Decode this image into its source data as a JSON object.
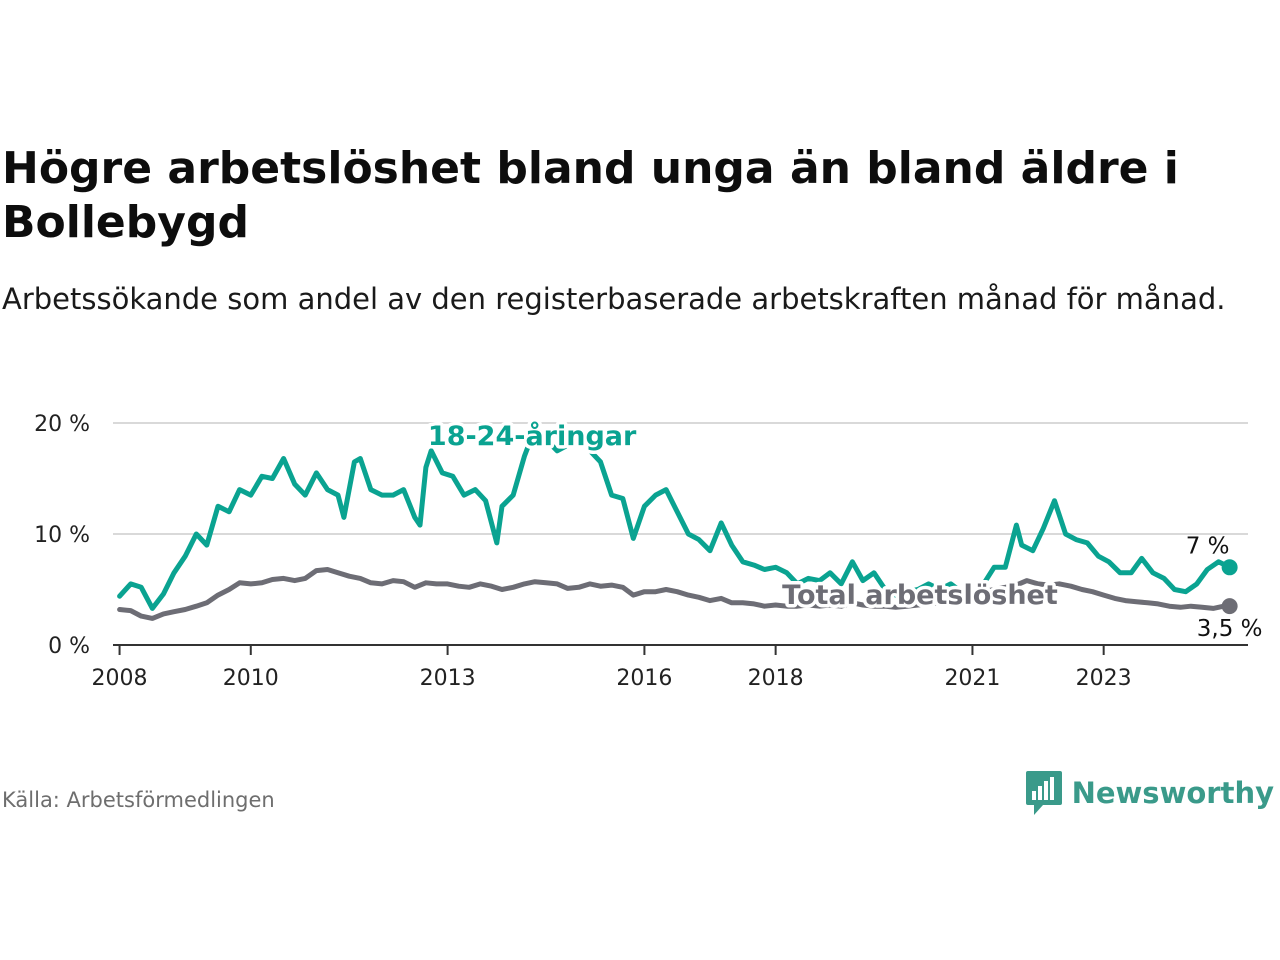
{
  "header": {
    "title": "Högre arbetslöshet bland unga än bland äldre i Bollebygd",
    "subtitle": "Arbetssökande som andel av den registerbaserade arbetskraften månad för månad."
  },
  "footer": {
    "source": "Källa: Arbetsförmedlingen",
    "brand": "Newsworthy"
  },
  "colors": {
    "youth": "#0aa391",
    "total": "#6d6d75",
    "grid": "#d9d9d9",
    "axis": "#333333",
    "brand": "#3a9a8a"
  },
  "chart_data": {
    "type": "line",
    "title": "Högre arbetslöshet bland unga än bland äldre i Bollebygd",
    "ylim": [
      0,
      20
    ],
    "xlim": [
      2007.9,
      2025.2
    ],
    "yticks": [
      0,
      10,
      20
    ],
    "ytick_labels": [
      "0 %",
      "10 %",
      "20 %"
    ],
    "xticks": [
      2008,
      2010,
      2013,
      2016,
      2018,
      2021,
      2023
    ],
    "xtick_labels": [
      "2008",
      "2010",
      "2013",
      "2016",
      "2018",
      "2021",
      "2023"
    ],
    "grid": true,
    "series": [
      {
        "name": "18-24-åringar",
        "label": "18-24-åringar",
        "end_label": "7 %",
        "points": [
          [
            2008.0,
            4.4
          ],
          [
            2008.17,
            5.5
          ],
          [
            2008.33,
            5.2
          ],
          [
            2008.5,
            3.3
          ],
          [
            2008.67,
            4.6
          ],
          [
            2008.83,
            6.5
          ],
          [
            2009.0,
            8.0
          ],
          [
            2009.17,
            10.0
          ],
          [
            2009.33,
            9.0
          ],
          [
            2009.5,
            12.5
          ],
          [
            2009.67,
            12.0
          ],
          [
            2009.83,
            14.0
          ],
          [
            2010.0,
            13.5
          ],
          [
            2010.17,
            15.2
          ],
          [
            2010.33,
            15.0
          ],
          [
            2010.5,
            16.8
          ],
          [
            2010.67,
            14.5
          ],
          [
            2010.83,
            13.5
          ],
          [
            2011.0,
            15.5
          ],
          [
            2011.17,
            14.0
          ],
          [
            2011.33,
            13.5
          ],
          [
            2011.42,
            11.5
          ],
          [
            2011.58,
            16.5
          ],
          [
            2011.67,
            16.8
          ],
          [
            2011.83,
            14.0
          ],
          [
            2012.0,
            13.5
          ],
          [
            2012.17,
            13.5
          ],
          [
            2012.33,
            14.0
          ],
          [
            2012.5,
            11.5
          ],
          [
            2012.58,
            10.8
          ],
          [
            2012.67,
            16.0
          ],
          [
            2012.75,
            17.5
          ],
          [
            2012.92,
            15.5
          ],
          [
            2013.08,
            15.2
          ],
          [
            2013.25,
            13.5
          ],
          [
            2013.42,
            14.0
          ],
          [
            2013.58,
            13.0
          ],
          [
            2013.75,
            9.2
          ],
          [
            2013.83,
            12.5
          ],
          [
            2014.0,
            13.5
          ],
          [
            2014.17,
            17.0
          ],
          [
            2014.33,
            19.5
          ],
          [
            2014.5,
            18.5
          ],
          [
            2014.67,
            17.5
          ],
          [
            2014.83,
            18.0
          ],
          [
            2015.0,
            19.0
          ],
          [
            2015.17,
            17.5
          ],
          [
            2015.33,
            16.5
          ],
          [
            2015.5,
            13.5
          ],
          [
            2015.67,
            13.2
          ],
          [
            2015.83,
            9.6
          ],
          [
            2016.0,
            12.5
          ],
          [
            2016.17,
            13.5
          ],
          [
            2016.33,
            14.0
          ],
          [
            2016.5,
            12.0
          ],
          [
            2016.67,
            10.0
          ],
          [
            2016.83,
            9.5
          ],
          [
            2017.0,
            8.5
          ],
          [
            2017.17,
            11.0
          ],
          [
            2017.33,
            9.0
          ],
          [
            2017.5,
            7.5
          ],
          [
            2017.67,
            7.2
          ],
          [
            2017.83,
            6.8
          ],
          [
            2018.0,
            7.0
          ],
          [
            2018.17,
            6.5
          ],
          [
            2018.33,
            5.5
          ],
          [
            2018.5,
            6.0
          ],
          [
            2018.67,
            5.8
          ],
          [
            2018.83,
            6.5
          ],
          [
            2019.0,
            5.5
          ],
          [
            2019.17,
            7.5
          ],
          [
            2019.33,
            5.8
          ],
          [
            2019.5,
            6.5
          ],
          [
            2019.67,
            5.0
          ],
          [
            2019.83,
            4.5
          ],
          [
            2020.0,
            4.8
          ],
          [
            2020.17,
            5.0
          ],
          [
            2020.33,
            5.5
          ],
          [
            2020.5,
            5.0
          ],
          [
            2020.67,
            5.5
          ],
          [
            2020.83,
            4.8
          ],
          [
            2021.0,
            4.5
          ],
          [
            2021.17,
            5.5
          ],
          [
            2021.33,
            7.0
          ],
          [
            2021.5,
            7.0
          ],
          [
            2021.67,
            10.8
          ],
          [
            2021.75,
            9.0
          ],
          [
            2021.92,
            8.5
          ],
          [
            2022.08,
            10.5
          ],
          [
            2022.25,
            13.0
          ],
          [
            2022.42,
            10.0
          ],
          [
            2022.58,
            9.5
          ],
          [
            2022.75,
            9.2
          ],
          [
            2022.92,
            8.0
          ],
          [
            2023.08,
            7.5
          ],
          [
            2023.25,
            6.5
          ],
          [
            2023.42,
            6.5
          ],
          [
            2023.58,
            7.8
          ],
          [
            2023.75,
            6.5
          ],
          [
            2023.92,
            6.0
          ],
          [
            2024.08,
            5.0
          ],
          [
            2024.25,
            4.8
          ],
          [
            2024.42,
            5.5
          ],
          [
            2024.58,
            6.8
          ],
          [
            2024.75,
            7.5
          ],
          [
            2024.92,
            7.0
          ]
        ]
      },
      {
        "name": "Total arbetslöshet",
        "label": "Total arbetslöshet",
        "end_label": "3,5 %",
        "points": [
          [
            2008.0,
            3.2
          ],
          [
            2008.17,
            3.1
          ],
          [
            2008.33,
            2.6
          ],
          [
            2008.5,
            2.4
          ],
          [
            2008.67,
            2.8
          ],
          [
            2008.83,
            3.0
          ],
          [
            2009.0,
            3.2
          ],
          [
            2009.17,
            3.5
          ],
          [
            2009.33,
            3.8
          ],
          [
            2009.5,
            4.5
          ],
          [
            2009.67,
            5.0
          ],
          [
            2009.83,
            5.6
          ],
          [
            2010.0,
            5.5
          ],
          [
            2010.17,
            5.6
          ],
          [
            2010.33,
            5.9
          ],
          [
            2010.5,
            6.0
          ],
          [
            2010.67,
            5.8
          ],
          [
            2010.83,
            6.0
          ],
          [
            2011.0,
            6.7
          ],
          [
            2011.17,
            6.8
          ],
          [
            2011.33,
            6.5
          ],
          [
            2011.5,
            6.2
          ],
          [
            2011.67,
            6.0
          ],
          [
            2011.83,
            5.6
          ],
          [
            2012.0,
            5.5
          ],
          [
            2012.17,
            5.8
          ],
          [
            2012.33,
            5.7
          ],
          [
            2012.5,
            5.2
          ],
          [
            2012.67,
            5.6
          ],
          [
            2012.83,
            5.5
          ],
          [
            2013.0,
            5.5
          ],
          [
            2013.17,
            5.3
          ],
          [
            2013.33,
            5.2
          ],
          [
            2013.5,
            5.5
          ],
          [
            2013.67,
            5.3
          ],
          [
            2013.83,
            5.0
          ],
          [
            2014.0,
            5.2
          ],
          [
            2014.17,
            5.5
          ],
          [
            2014.33,
            5.7
          ],
          [
            2014.5,
            5.6
          ],
          [
            2014.67,
            5.5
          ],
          [
            2014.83,
            5.1
          ],
          [
            2015.0,
            5.2
          ],
          [
            2015.17,
            5.5
          ],
          [
            2015.33,
            5.3
          ],
          [
            2015.5,
            5.4
          ],
          [
            2015.67,
            5.2
          ],
          [
            2015.83,
            4.5
          ],
          [
            2016.0,
            4.8
          ],
          [
            2016.17,
            4.8
          ],
          [
            2016.33,
            5.0
          ],
          [
            2016.5,
            4.8
          ],
          [
            2016.67,
            4.5
          ],
          [
            2016.83,
            4.3
          ],
          [
            2017.0,
            4.0
          ],
          [
            2017.17,
            4.2
          ],
          [
            2017.33,
            3.8
          ],
          [
            2017.5,
            3.8
          ],
          [
            2017.67,
            3.7
          ],
          [
            2017.83,
            3.5
          ],
          [
            2018.0,
            3.6
          ],
          [
            2018.17,
            3.5
          ],
          [
            2018.33,
            3.5
          ],
          [
            2018.5,
            3.6
          ],
          [
            2018.67,
            3.5
          ],
          [
            2018.83,
            3.6
          ],
          [
            2019.0,
            3.5
          ],
          [
            2019.17,
            3.8
          ],
          [
            2019.33,
            3.6
          ],
          [
            2019.5,
            3.5
          ],
          [
            2019.67,
            3.5
          ],
          [
            2019.83,
            3.4
          ],
          [
            2020.0,
            3.5
          ],
          [
            2020.17,
            3.6
          ],
          [
            2020.33,
            3.7
          ],
          [
            2020.5,
            3.8
          ],
          [
            2020.67,
            4.0
          ],
          [
            2020.83,
            4.2
          ],
          [
            2021.0,
            4.5
          ],
          [
            2021.17,
            4.8
          ],
          [
            2021.33,
            5.0
          ],
          [
            2021.5,
            5.2
          ],
          [
            2021.67,
            5.4
          ],
          [
            2021.83,
            5.8
          ],
          [
            2022.0,
            5.5
          ],
          [
            2022.17,
            5.4
          ],
          [
            2022.33,
            5.5
          ],
          [
            2022.5,
            5.3
          ],
          [
            2022.67,
            5.0
          ],
          [
            2022.83,
            4.8
          ],
          [
            2023.0,
            4.5
          ],
          [
            2023.17,
            4.2
          ],
          [
            2023.33,
            4.0
          ],
          [
            2023.5,
            3.9
          ],
          [
            2023.67,
            3.8
          ],
          [
            2023.83,
            3.7
          ],
          [
            2024.0,
            3.5
          ],
          [
            2024.17,
            3.4
          ],
          [
            2024.33,
            3.5
          ],
          [
            2024.5,
            3.4
          ],
          [
            2024.67,
            3.3
          ],
          [
            2024.83,
            3.5
          ],
          [
            2024.92,
            3.5
          ]
        ]
      }
    ]
  }
}
